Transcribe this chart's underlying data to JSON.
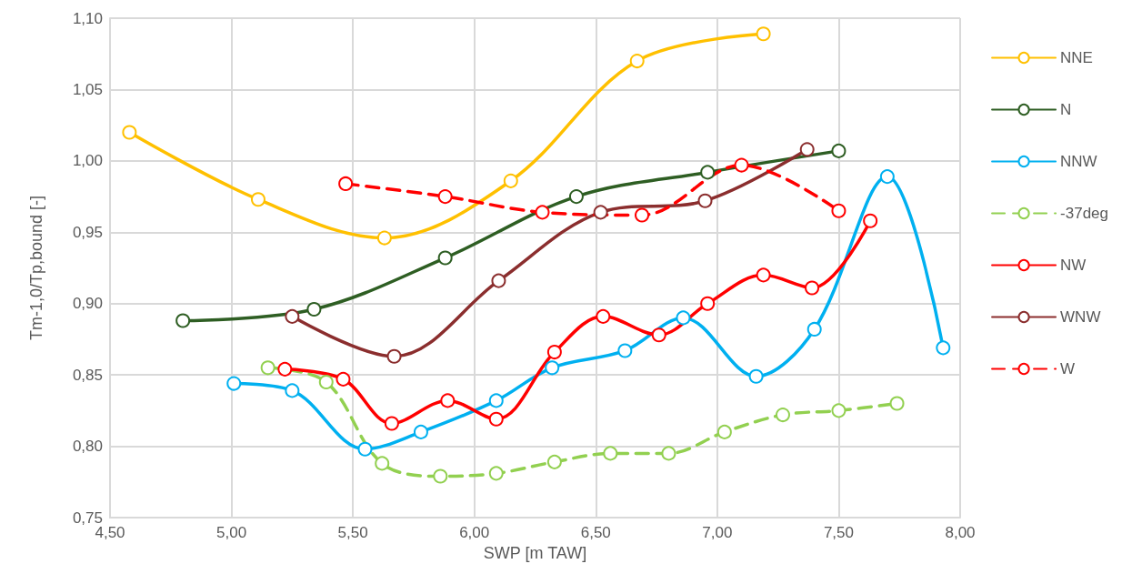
{
  "chart_data": {
    "type": "line",
    "xlabel": "SWP [m TAW]",
    "ylabel": "Tm-1,0/Tp,bound [-]",
    "xlim": [
      4.5,
      8.0
    ],
    "xticks": [
      {
        "value": 4.5,
        "label": "4,50"
      },
      {
        "value": 5.0,
        "label": "5,00"
      },
      {
        "value": 5.5,
        "label": "5,50"
      },
      {
        "value": 6.0,
        "label": "6,00"
      },
      {
        "value": 6.5,
        "label": "6,50"
      },
      {
        "value": 7.0,
        "label": "7,00"
      },
      {
        "value": 7.5,
        "label": "7,50"
      },
      {
        "value": 8.0,
        "label": "8,00"
      }
    ],
    "ylim": [
      0.75,
      1.1
    ],
    "yticks": [
      {
        "value": 0.75,
        "label": "0,75"
      },
      {
        "value": 0.8,
        "label": "0,80"
      },
      {
        "value": 0.85,
        "label": "0,85"
      },
      {
        "value": 0.9,
        "label": "0,90"
      },
      {
        "value": 0.95,
        "label": "0,95"
      },
      {
        "value": 1.0,
        "label": "1,00"
      },
      {
        "value": 1.05,
        "label": "1,05"
      },
      {
        "value": 1.1,
        "label": "1,10"
      }
    ],
    "grid": true,
    "legend": "right",
    "marker": "circle",
    "series": [
      {
        "name": "NNE",
        "color": "#ffc000",
        "line_style": "solid",
        "x": [
          4.58,
          5.11,
          5.63,
          6.15,
          6.67,
          7.19
        ],
        "values": [
          1.02,
          0.973,
          0.946,
          0.986,
          1.07,
          1.089
        ]
      },
      {
        "name": "N",
        "color": "#2e5e23",
        "line_style": "solid",
        "x": [
          4.8,
          5.34,
          5.88,
          6.42,
          6.96,
          7.5
        ],
        "values": [
          0.888,
          0.896,
          0.932,
          0.975,
          0.992,
          1.007
        ]
      },
      {
        "name": "NNW",
        "color": "#00b0f0",
        "line_style": "solid",
        "x": [
          5.01,
          5.25,
          5.55,
          5.78,
          6.09,
          6.32,
          6.62,
          6.86,
          7.16,
          7.4,
          7.7,
          7.93
        ],
        "values": [
          0.844,
          0.839,
          0.798,
          0.81,
          0.832,
          0.855,
          0.867,
          0.89,
          0.849,
          0.882,
          0.989,
          0.869
        ]
      },
      {
        "name": "-37deg",
        "color": "#92d050",
        "line_style": "dashed",
        "x": [
          5.15,
          5.39,
          5.62,
          5.86,
          6.09,
          6.33,
          6.56,
          6.8,
          7.03,
          7.27,
          7.5,
          7.74
        ],
        "values": [
          0.855,
          0.845,
          0.788,
          0.779,
          0.781,
          0.789,
          0.795,
          0.795,
          0.81,
          0.822,
          0.825,
          0.83
        ]
      },
      {
        "name": "NW",
        "color": "#ff0000",
        "line_style": "solid",
        "x": [
          5.22,
          5.46,
          5.66,
          5.89,
          6.09,
          6.33,
          6.53,
          6.76,
          6.96,
          7.19,
          7.39,
          7.63
        ],
        "values": [
          0.854,
          0.847,
          0.816,
          0.832,
          0.819,
          0.866,
          0.891,
          0.878,
          0.9,
          0.92,
          0.911,
          0.958
        ]
      },
      {
        "name": "WNW",
        "color": "#8b2e2e",
        "line_style": "solid",
        "x": [
          5.25,
          5.67,
          6.1,
          6.52,
          6.95,
          7.37
        ],
        "values": [
          0.891,
          0.863,
          0.916,
          0.964,
          0.972,
          1.008
        ]
      },
      {
        "name": "W",
        "color": "#ff0000",
        "line_style": "dashed",
        "x": [
          5.47,
          5.88,
          6.28,
          6.69,
          7.1,
          7.5
        ],
        "values": [
          0.984,
          0.975,
          0.964,
          0.962,
          0.997,
          0.965
        ]
      }
    ]
  }
}
